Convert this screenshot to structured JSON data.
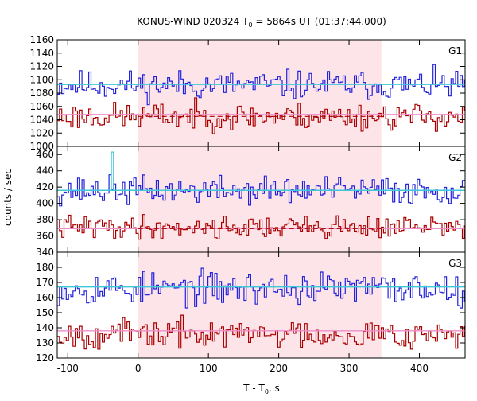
{
  "chart_data": {
    "type": "line",
    "title": "KONUS-WIND 020324 T",
    "title_sub": "0",
    "title_rest": " = 5864s UT (01:37:44.000)",
    "ylabel": "counts / sec",
    "xlabel_main": "T - T",
    "xlabel_sub": "0",
    "xlabel_rest": ", s",
    "xlim": [
      -115,
      465
    ],
    "xticks": [
      -100,
      0,
      100,
      200,
      300,
      400
    ],
    "shaded_interval": [
      0,
      346
    ],
    "colors": {
      "upper_series": "#2222dd",
      "lower_series": "#aa0000",
      "upper_fit": "#3ec8d8",
      "lower_fit": "#f08cc8",
      "background_level": "#aa0000",
      "shade": "#fde4e8"
    },
    "panels": [
      {
        "label": "G1",
        "ylim": [
          1000,
          1160
        ],
        "yticks": [
          1000,
          1020,
          1040,
          1060,
          1080,
          1100,
          1120,
          1140,
          1160
        ],
        "upper": {
          "base": 1092,
          "amp": 14,
          "seed": 11,
          "fit": 1093
        },
        "lower": {
          "base": 1045,
          "amp": 13,
          "seed": 23,
          "fit": 1048,
          "level": 1045
        },
        "upper_spikes": [],
        "fit_upper_label": "",
        "fit_lower_label": ""
      },
      {
        "label": "G2",
        "ylim": [
          340,
          470
        ],
        "yticks": [
          340,
          360,
          380,
          400,
          420,
          440,
          460
        ],
        "upper": {
          "base": 416,
          "amp": 11,
          "seed": 37,
          "fit": 416
        },
        "lower": {
          "base": 371,
          "amp": 9,
          "seed": 41,
          "fit": 369,
          "level": 369
        },
        "upper_spikes": [
          {
            "x": -38,
            "value": 463
          }
        ],
        "fit_upper_label": "",
        "fit_lower_label": ""
      },
      {
        "label": "G3",
        "ylim": [
          120,
          190
        ],
        "yticks": [
          120,
          130,
          140,
          150,
          160,
          170,
          180
        ],
        "upper": {
          "base": 166,
          "amp": 7,
          "seed": 53,
          "fit": 167
        },
        "lower": {
          "base": 136,
          "amp": 6,
          "seed": 67,
          "fit": 138
        },
        "upper_spikes": [],
        "fit_upper_label": "",
        "fit_lower_label": ""
      }
    ]
  }
}
